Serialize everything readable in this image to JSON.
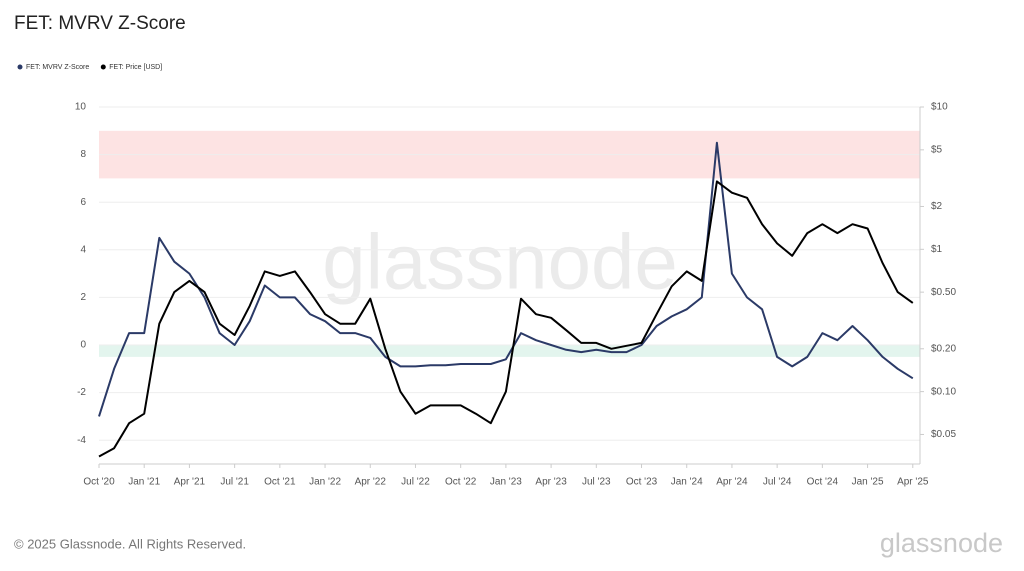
{
  "chart_data": {
    "type": "line",
    "title": "FET: MVRV Z-Score",
    "categories": [
      "Oct '20",
      null,
      null,
      "Jan '21",
      null,
      null,
      "Apr '21",
      null,
      null,
      "Jul '21",
      null,
      null,
      "Oct '21",
      null,
      null,
      "Jan '22",
      null,
      null,
      "Apr '22",
      null,
      null,
      "Jul '22",
      null,
      null,
      "Oct '22",
      null,
      null,
      "Jan '23",
      null,
      null,
      "Apr '23",
      null,
      null,
      "Jul '23",
      null,
      null,
      "Oct '23",
      null,
      null,
      "Jan '24",
      null,
      null,
      "Apr '24",
      null,
      null,
      "Jul '24",
      null,
      null,
      "Oct '24",
      null,
      null,
      "Jan '25",
      null,
      null,
      "Apr '25"
    ],
    "series": [
      {
        "name": "FET: MVRV Z-Score",
        "color": "#2b3a67",
        "axis": "y",
        "values": [
          -3,
          -1,
          0.5,
          0.5,
          4.5,
          3.5,
          3,
          2,
          0.5,
          0,
          1,
          2.5,
          2,
          2,
          1.3,
          1,
          0.5,
          0.5,
          0.3,
          -0.5,
          -0.9,
          -0.9,
          -0.85,
          -0.85,
          -0.8,
          -0.8,
          -0.8,
          -0.6,
          0.5,
          0.2,
          0,
          -0.2,
          -0.3,
          -0.2,
          -0.3,
          -0.3,
          0,
          0.8,
          1.2,
          1.5,
          2,
          8.5,
          3,
          2,
          1.5,
          -0.5,
          -0.9,
          -0.5,
          0.5,
          0.2,
          0.8,
          0.2,
          -0.5,
          -1,
          -1.4
        ]
      },
      {
        "name": "FET: Price [USD]",
        "color": "#000000",
        "axis": "y2",
        "values": [
          0.035,
          0.04,
          0.06,
          0.07,
          0.3,
          0.5,
          0.6,
          0.5,
          0.3,
          0.25,
          0.4,
          0.7,
          0.65,
          0.7,
          0.5,
          0.35,
          0.3,
          0.3,
          0.45,
          0.2,
          0.1,
          0.07,
          0.08,
          0.08,
          0.08,
          0.07,
          0.06,
          0.1,
          0.45,
          0.35,
          0.33,
          0.27,
          0.22,
          0.22,
          0.2,
          0.21,
          0.22,
          0.35,
          0.55,
          0.7,
          0.6,
          3,
          2.5,
          2.3,
          1.5,
          1.1,
          0.9,
          1.3,
          1.5,
          1.3,
          1.5,
          1.4,
          0.8,
          0.5,
          0.42
        ]
      }
    ],
    "ylim": [
      -5,
      10
    ],
    "yticks": [
      -4,
      -2,
      0,
      2,
      4,
      6,
      8,
      10
    ],
    "y2lim": [
      0.031,
      10
    ],
    "y2log": true,
    "y2ticks": [
      {
        "value": 0.05,
        "label": "$0.05"
      },
      {
        "value": 0.1,
        "label": "$0.10"
      },
      {
        "value": 0.2,
        "label": "$0.20"
      },
      {
        "value": 0.5,
        "label": "$0.50"
      },
      {
        "value": 1,
        "label": "$1"
      },
      {
        "value": 2,
        "label": "$2"
      },
      {
        "value": 5,
        "label": "$5"
      },
      {
        "value": 10,
        "label": "$10"
      }
    ],
    "bands": [
      {
        "from": 7,
        "to": 9,
        "color": "#fde3e3"
      },
      {
        "from": -0.5,
        "to": 0,
        "color": "#e3f5ee"
      }
    ],
    "grid": true,
    "watermark": "glassnode",
    "footer": "© 2025 Glassnode. All Rights Reserved."
  }
}
